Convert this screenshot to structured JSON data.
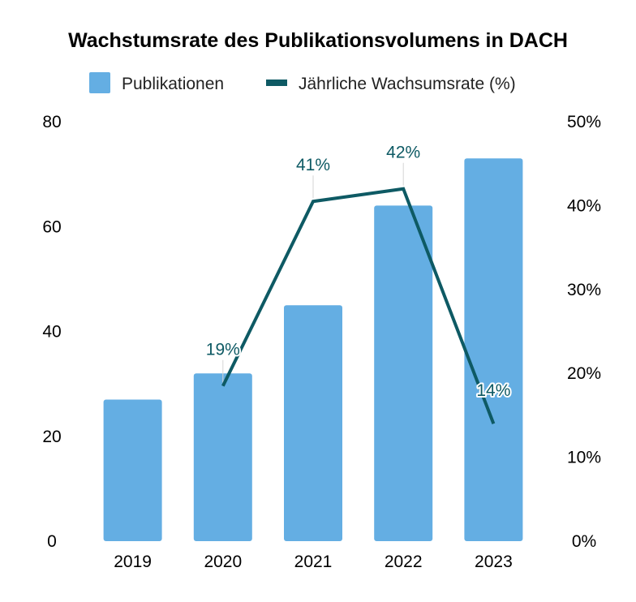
{
  "chart_data": {
    "type": "bar",
    "title": "Wachstumsrate des Publikationsvolumens in DACH",
    "categories": [
      "2019",
      "2020",
      "2021",
      "2022",
      "2023"
    ],
    "series": [
      {
        "name": "Publikationen",
        "type": "bar",
        "axis": "left",
        "color": "#64AEE3",
        "values": [
          27,
          32,
          45,
          64,
          73
        ]
      },
      {
        "name": "Jährliche Wachsumsrate (%)",
        "type": "line",
        "axis": "right",
        "color": "#0E5A64",
        "values": [
          null,
          18.5,
          40.5,
          42,
          14
        ],
        "data_labels": [
          "",
          "19%",
          "41%",
          "42%",
          "14%"
        ]
      }
    ],
    "y_left": {
      "min": 0,
      "max": 80,
      "ticks": [
        "0",
        "20",
        "40",
        "60",
        "80"
      ]
    },
    "y_right": {
      "min": 0,
      "max": 50,
      "ticks": [
        "0%",
        "10%",
        "20%",
        "30%",
        "40%",
        "50%"
      ]
    },
    "legend_position": "top",
    "grid": false
  }
}
